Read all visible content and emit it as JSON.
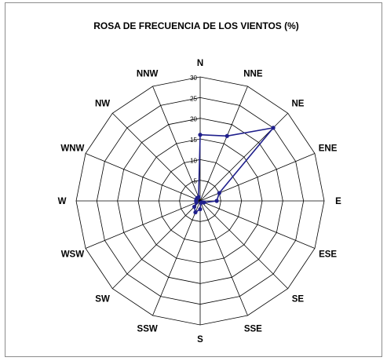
{
  "chart_data": {
    "type": "radar",
    "title": "ROSA DE FRECUENCIA DE LOS VIENTOS (%)",
    "categories": [
      "N",
      "NNE",
      "NE",
      "ENE",
      "E",
      "ESE",
      "SE",
      "SSE",
      "S",
      "SSW",
      "SW",
      "WSW",
      "W",
      "WNW",
      "NW",
      "NNW"
    ],
    "series": [
      {
        "values": [
          16,
          17,
          25,
          5,
          4,
          1,
          0.5,
          0.5,
          2,
          3,
          2,
          1,
          1,
          1,
          1,
          1
        ]
      }
    ],
    "radial_ticks": [
      "5",
      "10",
      "15",
      "20",
      "25",
      "30"
    ],
    "rmax": 30,
    "grid": true,
    "colors": {
      "series": "#1f1f8c",
      "grid": "#000000",
      "frame": "#8c8c8c"
    }
  }
}
